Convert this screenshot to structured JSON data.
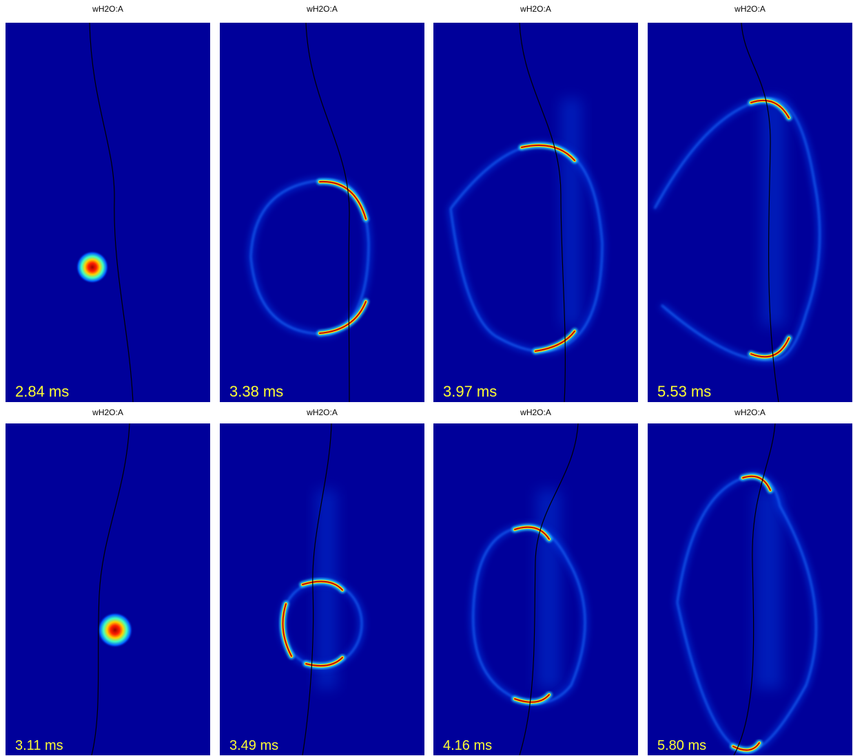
{
  "panels": [
    {
      "title": "wH2O:A",
      "time": "2.84 ms"
    },
    {
      "title": "wH2O:A",
      "time": "3.38 ms"
    },
    {
      "title": "wH2O:A",
      "time": "3.97 ms"
    },
    {
      "title": "wH2O:A",
      "time": "5.53 ms"
    },
    {
      "title": "wH2O:A",
      "time": "3.11 ms"
    },
    {
      "title": "wH2O:A",
      "time": "3.49 ms"
    },
    {
      "title": "wH2O:A",
      "time": "4.16 ms"
    },
    {
      "title": "wH2O:A",
      "time": "5.80 ms"
    }
  ]
}
